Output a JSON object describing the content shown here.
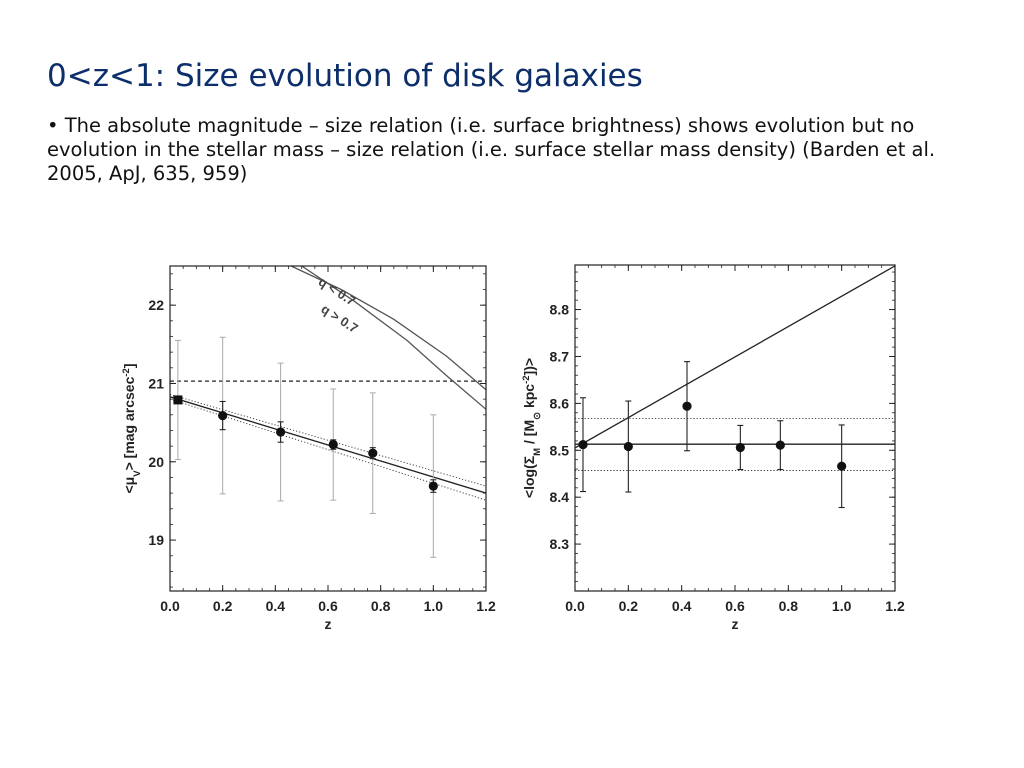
{
  "slide": {
    "title": "0<z<1: Size evolution of disk galaxies",
    "bullet": "• The absolute magnitude – size relation (i.e. surface brightness) shows evolution but no evolution in the stellar mass – size relation (i.e. surface stellar mass density) (Barden et al. 2005, ApJ, 635, 959)"
  },
  "chart_data": [
    {
      "type": "scatter",
      "xlabel": "z",
      "ylabel": "<μV> [mag arcsec⁻²]",
      "xlim": [
        0.0,
        1.2
      ],
      "ylim": [
        18.35,
        22.5
      ],
      "y_inverted": true,
      "x_ticks": [
        "0.0",
        "0.2",
        "0.4",
        "0.6",
        "0.8",
        "1.0",
        "1.2"
      ],
      "y_ticks": [
        "19",
        "20",
        "21",
        "22"
      ],
      "grid": false,
      "series": [
        {
          "marker": "circle",
          "x": [
            0.2,
            0.42,
            0.62,
            0.77,
            1.0
          ],
          "y": [
            20.59,
            20.38,
            20.22,
            20.11,
            19.69
          ],
          "err_bar": [
            0.18,
            0.13,
            0.06,
            0.07,
            0.08
          ],
          "err_scatter": [
            1.0,
            0.88,
            0.71,
            0.77,
            0.91
          ]
        },
        {
          "marker": "square",
          "x": [
            0.03
          ],
          "y": [
            20.79
          ],
          "err_bar": [
            0.0
          ],
          "err_scatter": [
            0.76
          ]
        }
      ],
      "lines": [
        {
          "style": "dashed",
          "points": [
            [
              0.0,
              21.03
            ],
            [
              1.2,
              21.03
            ]
          ]
        },
        {
          "style": "solid",
          "points": [
            [
              0.0,
              20.83
            ],
            [
              1.2,
              19.6
            ]
          ]
        },
        {
          "style": "dotted",
          "points": [
            [
              0.0,
              20.86
            ],
            [
              1.2,
              19.69
            ]
          ]
        },
        {
          "style": "dotted",
          "points": [
            [
              0.0,
              20.8
            ],
            [
              1.2,
              19.51
            ]
          ]
        },
        {
          "style": "solid",
          "label": "q < 0.7",
          "points": [
            [
              0.46,
              22.5
            ],
            [
              0.65,
              22.2
            ],
            [
              0.85,
              21.82
            ],
            [
              1.05,
              21.35
            ],
            [
              1.2,
              20.92
            ]
          ]
        },
        {
          "style": "solid",
          "label": "q > 0.7",
          "points": [
            [
              0.5,
              22.5
            ],
            [
              0.7,
              22.05
            ],
            [
              0.9,
              21.55
            ],
            [
              1.05,
              21.1
            ],
            [
              1.2,
              20.67
            ]
          ]
        }
      ]
    },
    {
      "type": "scatter",
      "xlabel": "z",
      "ylabel": "<log(ΣM / [M⊙ kpc⁻²])>",
      "xlim": [
        0.0,
        1.2
      ],
      "ylim": [
        8.2,
        8.895
      ],
      "x_ticks": [
        "0.0",
        "0.2",
        "0.4",
        "0.6",
        "0.8",
        "1.0",
        "1.2"
      ],
      "y_ticks": [
        "8.3",
        "8.4",
        "8.5",
        "8.6",
        "8.7",
        "8.8"
      ],
      "grid": false,
      "series": [
        {
          "marker": "circle",
          "x": [
            0.03,
            0.2,
            0.42,
            0.62,
            0.77,
            1.0
          ],
          "y": [
            8.512,
            8.508,
            8.594,
            8.506,
            8.511,
            8.466
          ],
          "yerr": [
            0.1,
            0.097,
            0.095,
            0.047,
            0.052,
            0.088
          ]
        }
      ],
      "lines": [
        {
          "style": "solid",
          "points": [
            [
              0.0,
              8.513
            ],
            [
              1.2,
              8.513
            ]
          ]
        },
        {
          "style": "solid",
          "points": [
            [
              0.0,
              8.505
            ],
            [
              1.2,
              8.893
            ]
          ]
        },
        {
          "style": "dotted",
          "points": [
            [
              0.0,
              8.568
            ],
            [
              1.2,
              8.568
            ]
          ]
        },
        {
          "style": "dotted",
          "points": [
            [
              0.0,
              8.457
            ],
            [
              1.2,
              8.457
            ]
          ]
        }
      ]
    }
  ]
}
